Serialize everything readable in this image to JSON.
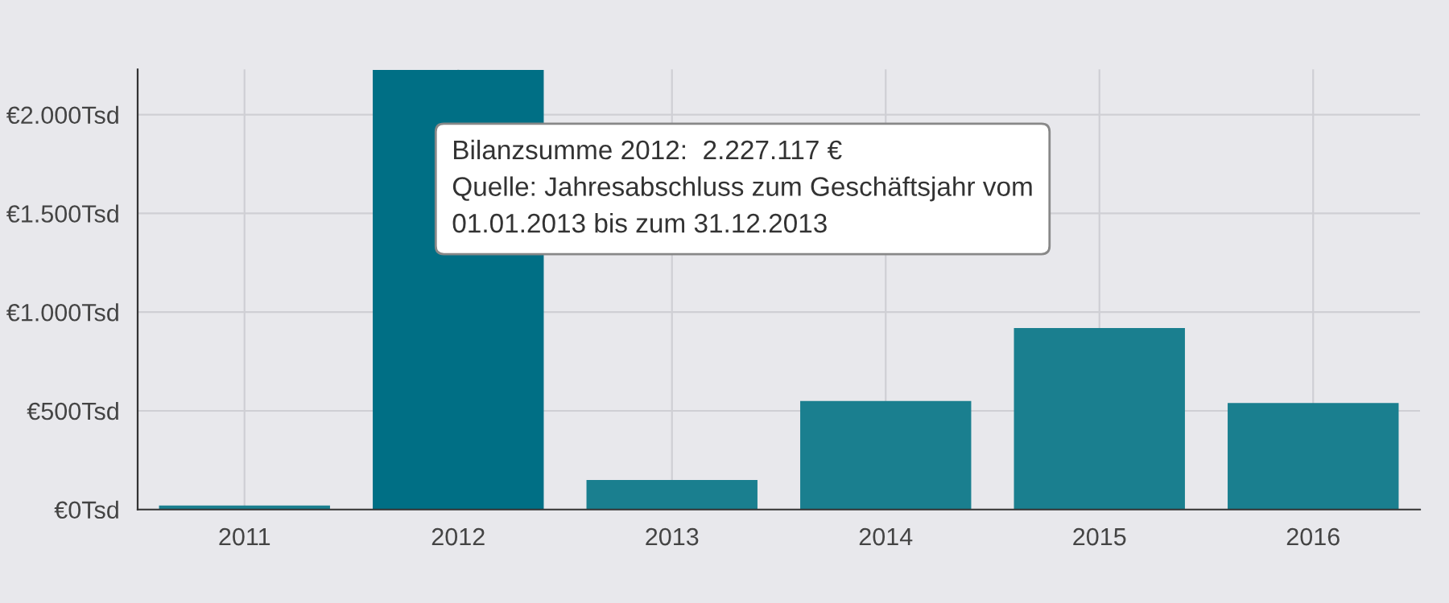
{
  "chart_data": {
    "type": "bar",
    "categories": [
      "2011",
      "2012",
      "2013",
      "2014",
      "2015",
      "2016"
    ],
    "values": [
      20,
      2227.117,
      150,
      550,
      920,
      540
    ],
    "colors": [
      "#1a7f8f",
      "#006f85",
      "#1a7f8f",
      "#1a7f8f",
      "#1a7f8f",
      "#1a7f8f"
    ],
    "ylim": [
      0,
      2230
    ],
    "yticks": [
      {
        "value": 0,
        "label": "€0Tsd"
      },
      {
        "value": 500,
        "label": "€500Tsd"
      },
      {
        "value": 1000,
        "label": "€1.000Tsd"
      },
      {
        "value": 1500,
        "label": "€1.500Tsd"
      },
      {
        "value": 2000,
        "label": "€2.000Tsd"
      }
    ],
    "grid": true,
    "annotations": [
      "Bilanzsumme 2012:  2.227.117 €\nQuelle: Jahresabschluss zum Geschäftsjahr vom\n01.01.2013 bis zum 31.12.2013"
    ]
  }
}
